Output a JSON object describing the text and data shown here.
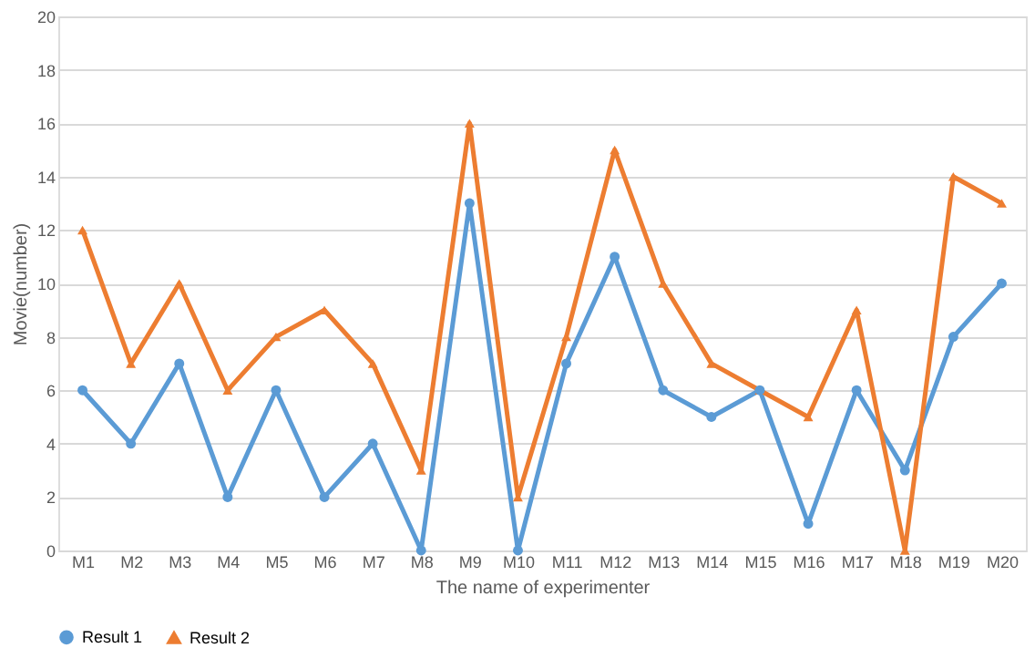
{
  "chart_data": {
    "type": "line",
    "xlabel": "The name of experimenter",
    "ylabel": "Movie(number)",
    "categories": [
      "M1",
      "M2",
      "M3",
      "M4",
      "M5",
      "M6",
      "M7",
      "M8",
      "M9",
      "M10",
      "M11",
      "M12",
      "M13",
      "M14",
      "M15",
      "M16",
      "M17",
      "M18",
      "M19",
      "M20"
    ],
    "series": [
      {
        "name": "Result 1",
        "color": "#5b9bd5",
        "marker": "circle",
        "values": [
          6,
          4,
          7,
          2,
          6,
          2,
          4,
          0,
          13,
          0,
          7,
          11,
          6,
          5,
          6,
          1,
          6,
          3,
          8,
          10
        ]
      },
      {
        "name": "Result 2",
        "color": "#ed7d31",
        "marker": "triangle",
        "values": [
          12,
          7,
          10,
          6,
          8,
          9,
          7,
          3,
          16,
          2,
          8,
          15,
          10,
          7,
          6,
          5,
          9,
          0,
          14,
          13
        ]
      }
    ],
    "ylim": [
      0,
      20
    ],
    "yticks": [
      0,
      2,
      4,
      6,
      8,
      10,
      12,
      14,
      16,
      18,
      20
    ],
    "grid": "y",
    "legend": "bottom",
    "line_style": "solid"
  }
}
